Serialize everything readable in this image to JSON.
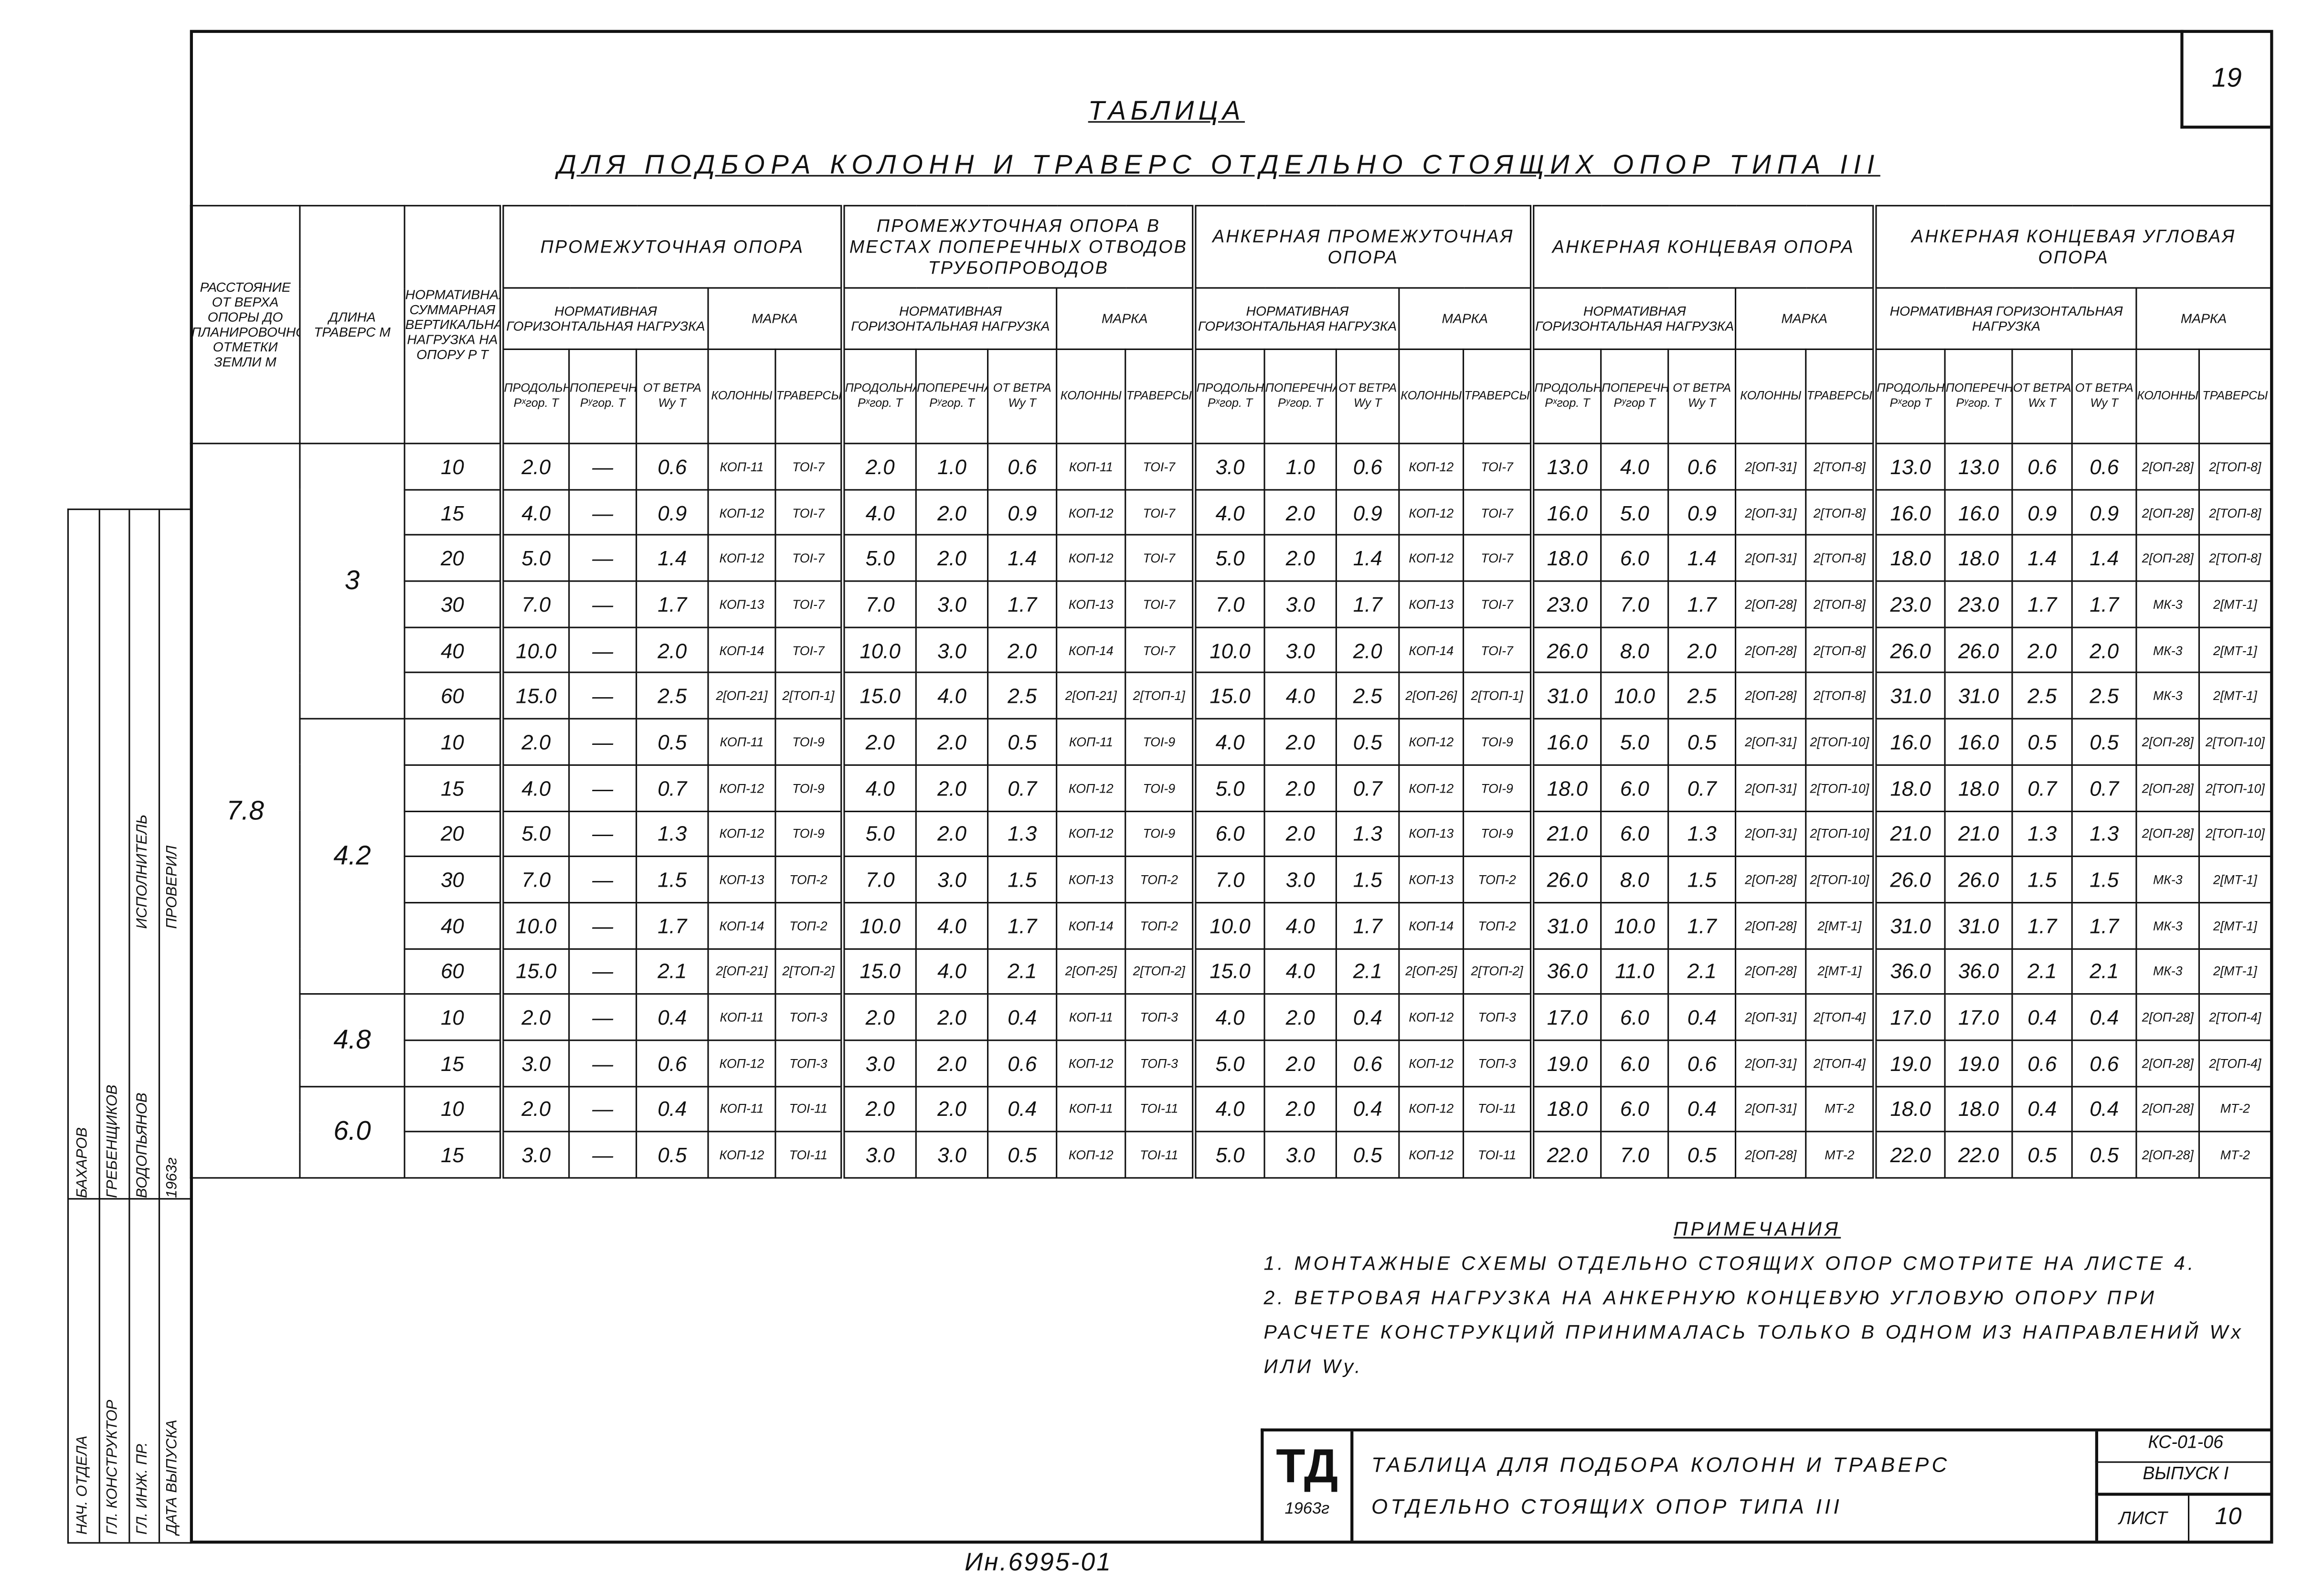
{
  "sheet_number": "19",
  "title": "ТАБЛИЦА",
  "subtitle": "ДЛЯ ПОДБОРА КОЛОНН И ТРАВЕРС ОТДЕЛЬНО СТОЯЩИХ ОПОР ТИПА III",
  "table": {
    "header": {
      "height_label": "РАССТОЯНИЕ ОТ ВЕРХА ОПОРЫ ДО ПЛАНИРОВОЧНОЙ ОТМЕТКИ ЗЕМЛИ М",
      "travers_label": "ДЛИНА ТРАВЕРС М",
      "load_label": "НОРМАТИВНАЯ СУММАРНАЯ ВЕРТИКАЛЬНАЯ НАГРУЗКА НА ОПОРУ P Т",
      "groups": [
        {
          "title": "ПРОМЕЖУТОЧНАЯ ОПОРА",
          "load_title": "НОРМАТИВНАЯ ГОРИЗОНТАЛЬНАЯ НАГРУЗКА",
          "mark_title": "МАРКА",
          "columns": [
            "ПРОДОЛЬНАЯ Pˣгор. Т",
            "ПОПЕРЕЧНАЯ Pʸгор. Т",
            "ОТ ВЕТРА Wy Т",
            "КОЛОННЫ",
            "ТРАВЕРСЫ"
          ]
        },
        {
          "title": "ПРОМЕЖУТОЧНАЯ ОПОРА В МЕСТАХ ПОПЕРЕЧНЫХ ОТВОДОВ ТРУБОПРОВОДОВ",
          "load_title": "НОРМАТИВНАЯ ГОРИЗОНТАЛЬНАЯ НАГРУЗКА",
          "mark_title": "МАРКА",
          "columns": [
            "ПРОДОЛЬНАЯ Pˣгор. Т",
            "ПОПЕРЕЧНАЯ Pʸгор. Т",
            "ОТ ВЕТРА Wy Т",
            "КОЛОННЫ",
            "ТРАВЕРСЫ"
          ]
        },
        {
          "title": "АНКЕРНАЯ ПРОМЕЖУТОЧНАЯ ОПОРА",
          "load_title": "НОРМАТИВНАЯ ГОРИЗОНТАЛЬНАЯ НАГРУЗКА",
          "mark_title": "МАРКА",
          "columns": [
            "ПРОДОЛЬНАЯ Pˣгор. Т",
            "ПОПЕРЕЧНАЯ Pʸгор. Т",
            "ОТ ВЕТРА Wy Т",
            "КОЛОННЫ",
            "ТРАВЕРСЫ"
          ]
        },
        {
          "title": "АНКЕРНАЯ КОНЦЕВАЯ ОПОРА",
          "load_title": "НОРМАТИВНАЯ ГОРИЗОНТАЛЬНАЯ НАГРУЗКА",
          "mark_title": "МАРКА",
          "columns": [
            "ПРОДОЛЬНАЯ Pˣгор. Т",
            "ПОПЕРЕЧНАЯ Pʸгор Т",
            "ОТ ВЕТРА Wy Т",
            "КОЛОННЫ",
            "ТРАВЕРСЫ"
          ]
        },
        {
          "title": "АНКЕРНАЯ КОНЦЕВАЯ УГЛОВАЯ ОПОРА",
          "load_title": "НОРМАТИВНАЯ ГОРИЗОНТАЛЬНАЯ НАГРУЗКА",
          "mark_title": "МАРКА",
          "columns": [
            "ПРОДОЛЬНАЯ Pˣгор Т",
            "ПОПЕРЕЧНАЯ Pʸгор. Т",
            "ОТ ВЕТРА Wx Т",
            "ОТ ВЕТРА Wy Т",
            "КОЛОННЫ",
            "ТРАВЕРСЫ"
          ]
        }
      ]
    },
    "height": "7.8",
    "blocks": [
      {
        "travers": "3",
        "rows": [
          [
            "10",
            "2.0",
            "—",
            "0.6",
            "КОП-11",
            "ТОI-7",
            "2.0",
            "1.0",
            "0.6",
            "КОП-11",
            "ТОI-7",
            "3.0",
            "1.0",
            "0.6",
            "КОП-12",
            "ТОI-7",
            "13.0",
            "4.0",
            "0.6",
            "2[ОП-31]",
            "2[ТОП-8]",
            "13.0",
            "13.0",
            "0.6",
            "0.6",
            "2[ОП-28]",
            "2[ТОП-8]"
          ],
          [
            "15",
            "4.0",
            "—",
            "0.9",
            "КОП-12",
            "ТОI-7",
            "4.0",
            "2.0",
            "0.9",
            "КОП-12",
            "ТОI-7",
            "4.0",
            "2.0",
            "0.9",
            "КОП-12",
            "ТОI-7",
            "16.0",
            "5.0",
            "0.9",
            "2[ОП-31]",
            "2[ТОП-8]",
            "16.0",
            "16.0",
            "0.9",
            "0.9",
            "2[ОП-28]",
            "2[ТОП-8]"
          ],
          [
            "20",
            "5.0",
            "—",
            "1.4",
            "КОП-12",
            "ТОI-7",
            "5.0",
            "2.0",
            "1.4",
            "КОП-12",
            "ТОI-7",
            "5.0",
            "2.0",
            "1.4",
            "КОП-12",
            "ТОI-7",
            "18.0",
            "6.0",
            "1.4",
            "2[ОП-31]",
            "2[ТОП-8]",
            "18.0",
            "18.0",
            "1.4",
            "1.4",
            "2[ОП-28]",
            "2[ТОП-8]"
          ],
          [
            "30",
            "7.0",
            "—",
            "1.7",
            "КОП-13",
            "ТОI-7",
            "7.0",
            "3.0",
            "1.7",
            "КОП-13",
            "ТОI-7",
            "7.0",
            "3.0",
            "1.7",
            "КОП-13",
            "ТОI-7",
            "23.0",
            "7.0",
            "1.7",
            "2[ОП-28]",
            "2[ТОП-8]",
            "23.0",
            "23.0",
            "1.7",
            "1.7",
            "МК-3",
            "2[МТ-1]"
          ],
          [
            "40",
            "10.0",
            "—",
            "2.0",
            "КОП-14",
            "ТОI-7",
            "10.0",
            "3.0",
            "2.0",
            "КОП-14",
            "ТОI-7",
            "10.0",
            "3.0",
            "2.0",
            "КОП-14",
            "ТОI-7",
            "26.0",
            "8.0",
            "2.0",
            "2[ОП-28]",
            "2[ТОП-8]",
            "26.0",
            "26.0",
            "2.0",
            "2.0",
            "МК-3",
            "2[МТ-1]"
          ],
          [
            "60",
            "15.0",
            "—",
            "2.5",
            "2[ОП-21]",
            "2[ТОП-1]",
            "15.0",
            "4.0",
            "2.5",
            "2[ОП-21]",
            "2[ТОП-1]",
            "15.0",
            "4.0",
            "2.5",
            "2[ОП-26]",
            "2[ТОП-1]",
            "31.0",
            "10.0",
            "2.5",
            "2[ОП-28]",
            "2[ТОП-8]",
            "31.0",
            "31.0",
            "2.5",
            "2.5",
            "МК-3",
            "2[МТ-1]"
          ]
        ]
      },
      {
        "travers": "4.2",
        "rows": [
          [
            "10",
            "2.0",
            "—",
            "0.5",
            "КОП-11",
            "ТОI-9",
            "2.0",
            "2.0",
            "0.5",
            "КОП-11",
            "ТОI-9",
            "4.0",
            "2.0",
            "0.5",
            "КОП-12",
            "ТОI-9",
            "16.0",
            "5.0",
            "0.5",
            "2[ОП-31]",
            "2[ТОП-10]",
            "16.0",
            "16.0",
            "0.5",
            "0.5",
            "2[ОП-28]",
            "2[ТОП-10]"
          ],
          [
            "15",
            "4.0",
            "—",
            "0.7",
            "КОП-12",
            "ТОI-9",
            "4.0",
            "2.0",
            "0.7",
            "КОП-12",
            "ТОI-9",
            "5.0",
            "2.0",
            "0.7",
            "КОП-12",
            "ТОI-9",
            "18.0",
            "6.0",
            "0.7",
            "2[ОП-31]",
            "2[ТОП-10]",
            "18.0",
            "18.0",
            "0.7",
            "0.7",
            "2[ОП-28]",
            "2[ТОП-10]"
          ],
          [
            "20",
            "5.0",
            "—",
            "1.3",
            "КОП-12",
            "ТОI-9",
            "5.0",
            "2.0",
            "1.3",
            "КОП-12",
            "ТОI-9",
            "6.0",
            "2.0",
            "1.3",
            "КОП-13",
            "ТОI-9",
            "21.0",
            "6.0",
            "1.3",
            "2[ОП-31]",
            "2[ТОП-10]",
            "21.0",
            "21.0",
            "1.3",
            "1.3",
            "2[ОП-28]",
            "2[ТОП-10]"
          ],
          [
            "30",
            "7.0",
            "—",
            "1.5",
            "КОП-13",
            "ТОП-2",
            "7.0",
            "3.0",
            "1.5",
            "КОП-13",
            "ТОП-2",
            "7.0",
            "3.0",
            "1.5",
            "КОП-13",
            "ТОП-2",
            "26.0",
            "8.0",
            "1.5",
            "2[ОП-28]",
            "2[ТОП-10]",
            "26.0",
            "26.0",
            "1.5",
            "1.5",
            "МК-3",
            "2[МТ-1]"
          ],
          [
            "40",
            "10.0",
            "—",
            "1.7",
            "КОП-14",
            "ТОП-2",
            "10.0",
            "4.0",
            "1.7",
            "КОП-14",
            "ТОП-2",
            "10.0",
            "4.0",
            "1.7",
            "КОП-14",
            "ТОП-2",
            "31.0",
            "10.0",
            "1.7",
            "2[ОП-28]",
            "2[МТ-1]",
            "31.0",
            "31.0",
            "1.7",
            "1.7",
            "МК-3",
            "2[МТ-1]"
          ],
          [
            "60",
            "15.0",
            "—",
            "2.1",
            "2[ОП-21]",
            "2[ТОП-2]",
            "15.0",
            "4.0",
            "2.1",
            "2[ОП-25]",
            "2[ТОП-2]",
            "15.0",
            "4.0",
            "2.1",
            "2[ОП-25]",
            "2[ТОП-2]",
            "36.0",
            "11.0",
            "2.1",
            "2[ОП-28]",
            "2[МТ-1]",
            "36.0",
            "36.0",
            "2.1",
            "2.1",
            "МК-3",
            "2[МТ-1]"
          ]
        ]
      },
      {
        "travers": "4.8",
        "rows": [
          [
            "10",
            "2.0",
            "—",
            "0.4",
            "КОП-11",
            "ТОП-3",
            "2.0",
            "2.0",
            "0.4",
            "КОП-11",
            "ТОП-3",
            "4.0",
            "2.0",
            "0.4",
            "КОП-12",
            "ТОП-3",
            "17.0",
            "6.0",
            "0.4",
            "2[ОП-31]",
            "2[ТОП-4]",
            "17.0",
            "17.0",
            "0.4",
            "0.4",
            "2[ОП-28]",
            "2[ТОП-4]"
          ],
          [
            "15",
            "3.0",
            "—",
            "0.6",
            "КОП-12",
            "ТОП-3",
            "3.0",
            "2.0",
            "0.6",
            "КОП-12",
            "ТОП-3",
            "5.0",
            "2.0",
            "0.6",
            "КОП-12",
            "ТОП-3",
            "19.0",
            "6.0",
            "0.6",
            "2[ОП-31]",
            "2[ТОП-4]",
            "19.0",
            "19.0",
            "0.6",
            "0.6",
            "2[ОП-28]",
            "2[ТОП-4]"
          ]
        ]
      },
      {
        "travers": "6.0",
        "rows": [
          [
            "10",
            "2.0",
            "—",
            "0.4",
            "КОП-11",
            "ТОI-11",
            "2.0",
            "2.0",
            "0.4",
            "КОП-11",
            "ТОI-11",
            "4.0",
            "2.0",
            "0.4",
            "КОП-12",
            "ТОI-11",
            "18.0",
            "6.0",
            "0.4",
            "2[ОП-31]",
            "МТ-2",
            "18.0",
            "18.0",
            "0.4",
            "0.4",
            "2[ОП-28]",
            "МТ-2"
          ],
          [
            "15",
            "3.0",
            "—",
            "0.5",
            "КОП-12",
            "ТОI-11",
            "3.0",
            "3.0",
            "0.5",
            "КОП-12",
            "ТОI-11",
            "5.0",
            "3.0",
            "0.5",
            "КОП-12",
            "ТОI-11",
            "22.0",
            "7.0",
            "0.5",
            "2[ОП-28]",
            "МТ-2",
            "22.0",
            "22.0",
            "0.5",
            "0.5",
            "2[ОП-28]",
            "МТ-2"
          ]
        ]
      }
    ]
  },
  "notes": {
    "title": "ПРИМЕЧАНИЯ",
    "items": [
      "1. МОНТАЖНЫЕ СХЕМЫ ОТДЕЛЬНО СТОЯЩИХ ОПОР СМОТРИТЕ НА ЛИСТЕ 4.",
      "2. ВЕТРОВАЯ НАГРУЗКА НА АНКЕРНУЮ КОНЦЕВУЮ УГЛОВУЮ ОПОРУ ПРИ РАСЧЕТЕ КОНСТРУКЦИЙ ПРИНИМАЛАСЬ ТОЛЬКО В ОДНОМ ИЗ НАПРАВЛЕНИЙ Wx ИЛИ Wy."
    ]
  },
  "stamp": {
    "rows": [
      [
        "НАЧ. ОТДЕЛА",
        "БАХАРОВ"
      ],
      [
        "ГЛ. КОНСТРУКТОР",
        "ГРЕБЕНЩИКОВ"
      ],
      [
        "ГЛ. ИНЖ. ПР.",
        "ВОДОПЬЯНОВ"
      ],
      [
        "ДАТА ВЫПУСКА",
        "1963г"
      ]
    ],
    "roles": [
      "ИСПОЛНИТЕЛЬ",
      "ПРОВЕРИЛ"
    ]
  },
  "title_block": {
    "logo": "ТД",
    "year": "1963г",
    "name": "ТАБЛИЦА ДЛЯ ПОДБОРА КОЛОНН И ТРАВЕРС ОТДЕЛЬНО СТОЯЩИХ ОПОР ТИПА III",
    "code": "КС-01-06",
    "issue": "ВЫПУСК I",
    "sheet_label": "ЛИСТ",
    "sheet": "10"
  },
  "inventory": "Ин.6995-01"
}
